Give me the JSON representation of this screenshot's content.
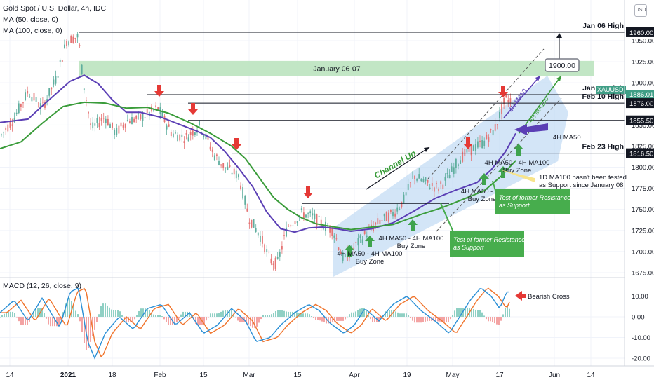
{
  "header": {
    "symbol_line": "Gold Spot / U.S. Dollar, 4h, IDC",
    "ma50_line": "MA (50, close, 0)",
    "ma100_line": "MA (100, close, 0)",
    "macd_line": "MACD (12, 26, close, 9)",
    "currency_button": "USD"
  },
  "colors": {
    "up_candle": "#5fae9e",
    "down_candle": "#e57373",
    "ma50": "#5b3fb5",
    "ma100": "#3a9c3a",
    "channel_fill": "#bcd7f3",
    "band_fill": "#b7e2bb",
    "red_arrow": "#e53935",
    "green_arrow": "#3fa34d",
    "macd_line": "#2a8fd6",
    "signal_line": "#f0742c"
  },
  "chart_data": {
    "type": "line",
    "x_ticks": [
      "14",
      "2021",
      "18",
      "Feb",
      "15",
      "Mar",
      "15",
      "Apr",
      "19",
      "May",
      "17",
      "Jun",
      "14"
    ],
    "y_ticks": [
      "1675.00",
      "1700.00",
      "1725.00",
      "1750.00",
      "1775.00",
      "1800.00",
      "1825.00",
      "1850.00",
      "1875.00",
      "1900.00",
      "1925.00",
      "1950.00"
    ],
    "ylim": [
      1668,
      1980
    ],
    "macd_ticks": [
      "10.00",
      "0.00",
      "-10.00",
      "-20.00"
    ],
    "macd_ylim": [
      -25,
      16
    ],
    "series": [
      {
        "name": "MA50",
        "values": [
          [
            0,
            1853
          ],
          [
            40,
            1857
          ],
          [
            70,
            1880
          ],
          [
            100,
            1902
          ],
          [
            120,
            1909
          ],
          [
            140,
            1899
          ],
          [
            160,
            1880
          ],
          [
            180,
            1865
          ],
          [
            200,
            1865
          ],
          [
            230,
            1859
          ],
          [
            255,
            1851
          ],
          [
            280,
            1843
          ],
          [
            300,
            1835
          ],
          [
            320,
            1819
          ],
          [
            340,
            1799
          ],
          [
            360,
            1777
          ],
          [
            380,
            1747
          ],
          [
            400,
            1727
          ],
          [
            420,
            1723
          ],
          [
            440,
            1728
          ],
          [
            460,
            1729
          ],
          [
            480,
            1727
          ],
          [
            500,
            1724
          ],
          [
            530,
            1727
          ],
          [
            560,
            1734
          ],
          [
            590,
            1748
          ],
          [
            620,
            1763
          ],
          [
            650,
            1773
          ],
          [
            680,
            1782
          ],
          [
            700,
            1797
          ],
          [
            720,
            1818
          ],
          [
            735,
            1840
          ]
        ]
      },
      {
        "name": "MA100",
        "values": [
          [
            0,
            1822
          ],
          [
            30,
            1830
          ],
          [
            60,
            1852
          ],
          [
            90,
            1872
          ],
          [
            120,
            1877
          ],
          [
            150,
            1876
          ],
          [
            180,
            1870
          ],
          [
            210,
            1871
          ],
          [
            240,
            1864
          ],
          [
            270,
            1853
          ],
          [
            300,
            1840
          ],
          [
            330,
            1825
          ],
          [
            350,
            1810
          ],
          [
            370,
            1787
          ],
          [
            390,
            1764
          ],
          [
            410,
            1750
          ],
          [
            430,
            1740
          ],
          [
            450,
            1733
          ],
          [
            470,
            1730
          ],
          [
            500,
            1726
          ],
          [
            530,
            1729
          ],
          [
            560,
            1732
          ],
          [
            600,
            1744
          ],
          [
            630,
            1752
          ],
          [
            660,
            1762
          ],
          [
            690,
            1772
          ],
          [
            715,
            1790
          ],
          [
            735,
            1808
          ]
        ]
      }
    ],
    "levels": [
      {
        "label": "Jan 06 High",
        "value": 1960.0,
        "price": "1960.00"
      },
      {
        "label": "Jan 28 High",
        "value": 1886.0,
        "price": "1886.01",
        "price2": "03:54",
        "ticker": "XAUUSD"
      },
      {
        "label": "Feb 10 High",
        "value": 1876.0,
        "price": "1876.00"
      },
      {
        "label": "",
        "value": 1855.5,
        "price": "1855.50"
      },
      {
        "label": "Feb 23 High",
        "value": 1816.5,
        "price": "1816.50"
      }
    ],
    "band": {
      "label": "January 06-07",
      "from": 1908,
      "to": 1926
    },
    "target": {
      "label": "1900.00",
      "value": 1900
    },
    "annotations": {
      "channel": "Channel Up",
      "ma50_on_chart": "4H MA50",
      "ma100_on_chart": "4H MA100",
      "ma50_side": "4H MA50",
      "buy_zone_1": [
        "4H MA50 - 4H MA100",
        "Buy Zone"
      ],
      "buy_zone_2": [
        "4H MA50 - 4H MA100",
        "Buy Zone"
      ],
      "buy_zone_3": [
        "4H MA50 - 4H",
        "Buy Zone"
      ],
      "buy_zone_4": [
        "4H MA50 - 4H MA100",
        "Buy Zone"
      ],
      "test_box_1": [
        "Test of former Resistance",
        "as Support"
      ],
      "test_box_2": [
        "Test of former Resistance",
        "as Support"
      ],
      "ma100_note": [
        "1D MA100 hasn't been tested",
        "as Support since January 08"
      ],
      "bearish_cross": "Bearish Cross"
    }
  }
}
